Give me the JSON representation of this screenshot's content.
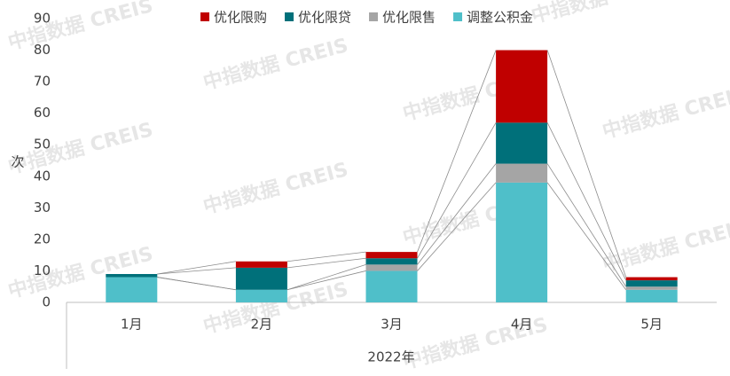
{
  "chart_data": {
    "type": "stacked_bar",
    "y_label": "次",
    "x_label": "2022年",
    "watermark": "中指数据 CREIS",
    "categories": [
      "1月",
      "2月",
      "3月",
      "4月",
      "5月"
    ],
    "series": [
      {
        "name": "调整公积金",
        "color": "#4fbfc9",
        "values": [
          8,
          4,
          10,
          38,
          4
        ]
      },
      {
        "name": "优化限售",
        "color": "#a5a5a5",
        "values": [
          0,
          0,
          2,
          6,
          1
        ]
      },
      {
        "name": "优化限贷",
        "color": "#00707a",
        "values": [
          1,
          7,
          2,
          13,
          2
        ]
      },
      {
        "name": "优化限购",
        "color": "#c00000",
        "values": [
          0,
          2,
          2,
          23,
          1
        ]
      }
    ],
    "ylim": [
      0,
      90
    ],
    "yticks": [
      0,
      10,
      20,
      30,
      40,
      50,
      60,
      70,
      80,
      90
    ],
    "grid": false,
    "legend": "top"
  }
}
